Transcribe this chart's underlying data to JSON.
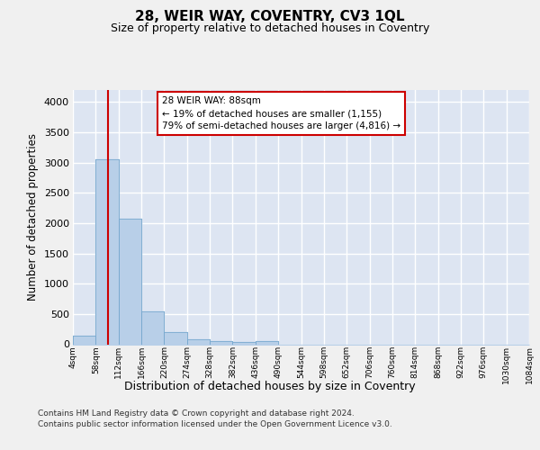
{
  "title": "28, WEIR WAY, COVENTRY, CV3 1QL",
  "subtitle": "Size of property relative to detached houses in Coventry",
  "xlabel": "Distribution of detached houses by size in Coventry",
  "ylabel": "Number of detached properties",
  "bar_color": "#b8cfe8",
  "bar_edge_color": "#7aaad0",
  "background_color": "#dde5f2",
  "grid_color": "#ffffff",
  "bin_edges": [
    4,
    58,
    112,
    166,
    220,
    274,
    328,
    382,
    436,
    490,
    544,
    598,
    652,
    706,
    760,
    814,
    868,
    922,
    976,
    1030,
    1084
  ],
  "bar_heights": [
    140,
    3050,
    2080,
    540,
    195,
    75,
    50,
    30,
    55,
    0,
    0,
    0,
    0,
    0,
    0,
    0,
    0,
    0,
    0,
    0
  ],
  "property_size": 88,
  "vline_color": "#cc0000",
  "annotation_line1": "28 WEIR WAY: 88sqm",
  "annotation_line2": "← 19% of detached houses are smaller (1,155)",
  "annotation_line3": "79% of semi-detached houses are larger (4,816) →",
  "ylim_max": 4200,
  "yticks": [
    0,
    500,
    1000,
    1500,
    2000,
    2500,
    3000,
    3500,
    4000
  ],
  "footer_line1": "Contains HM Land Registry data © Crown copyright and database right 2024.",
  "footer_line2": "Contains public sector information licensed under the Open Government Licence v3.0."
}
